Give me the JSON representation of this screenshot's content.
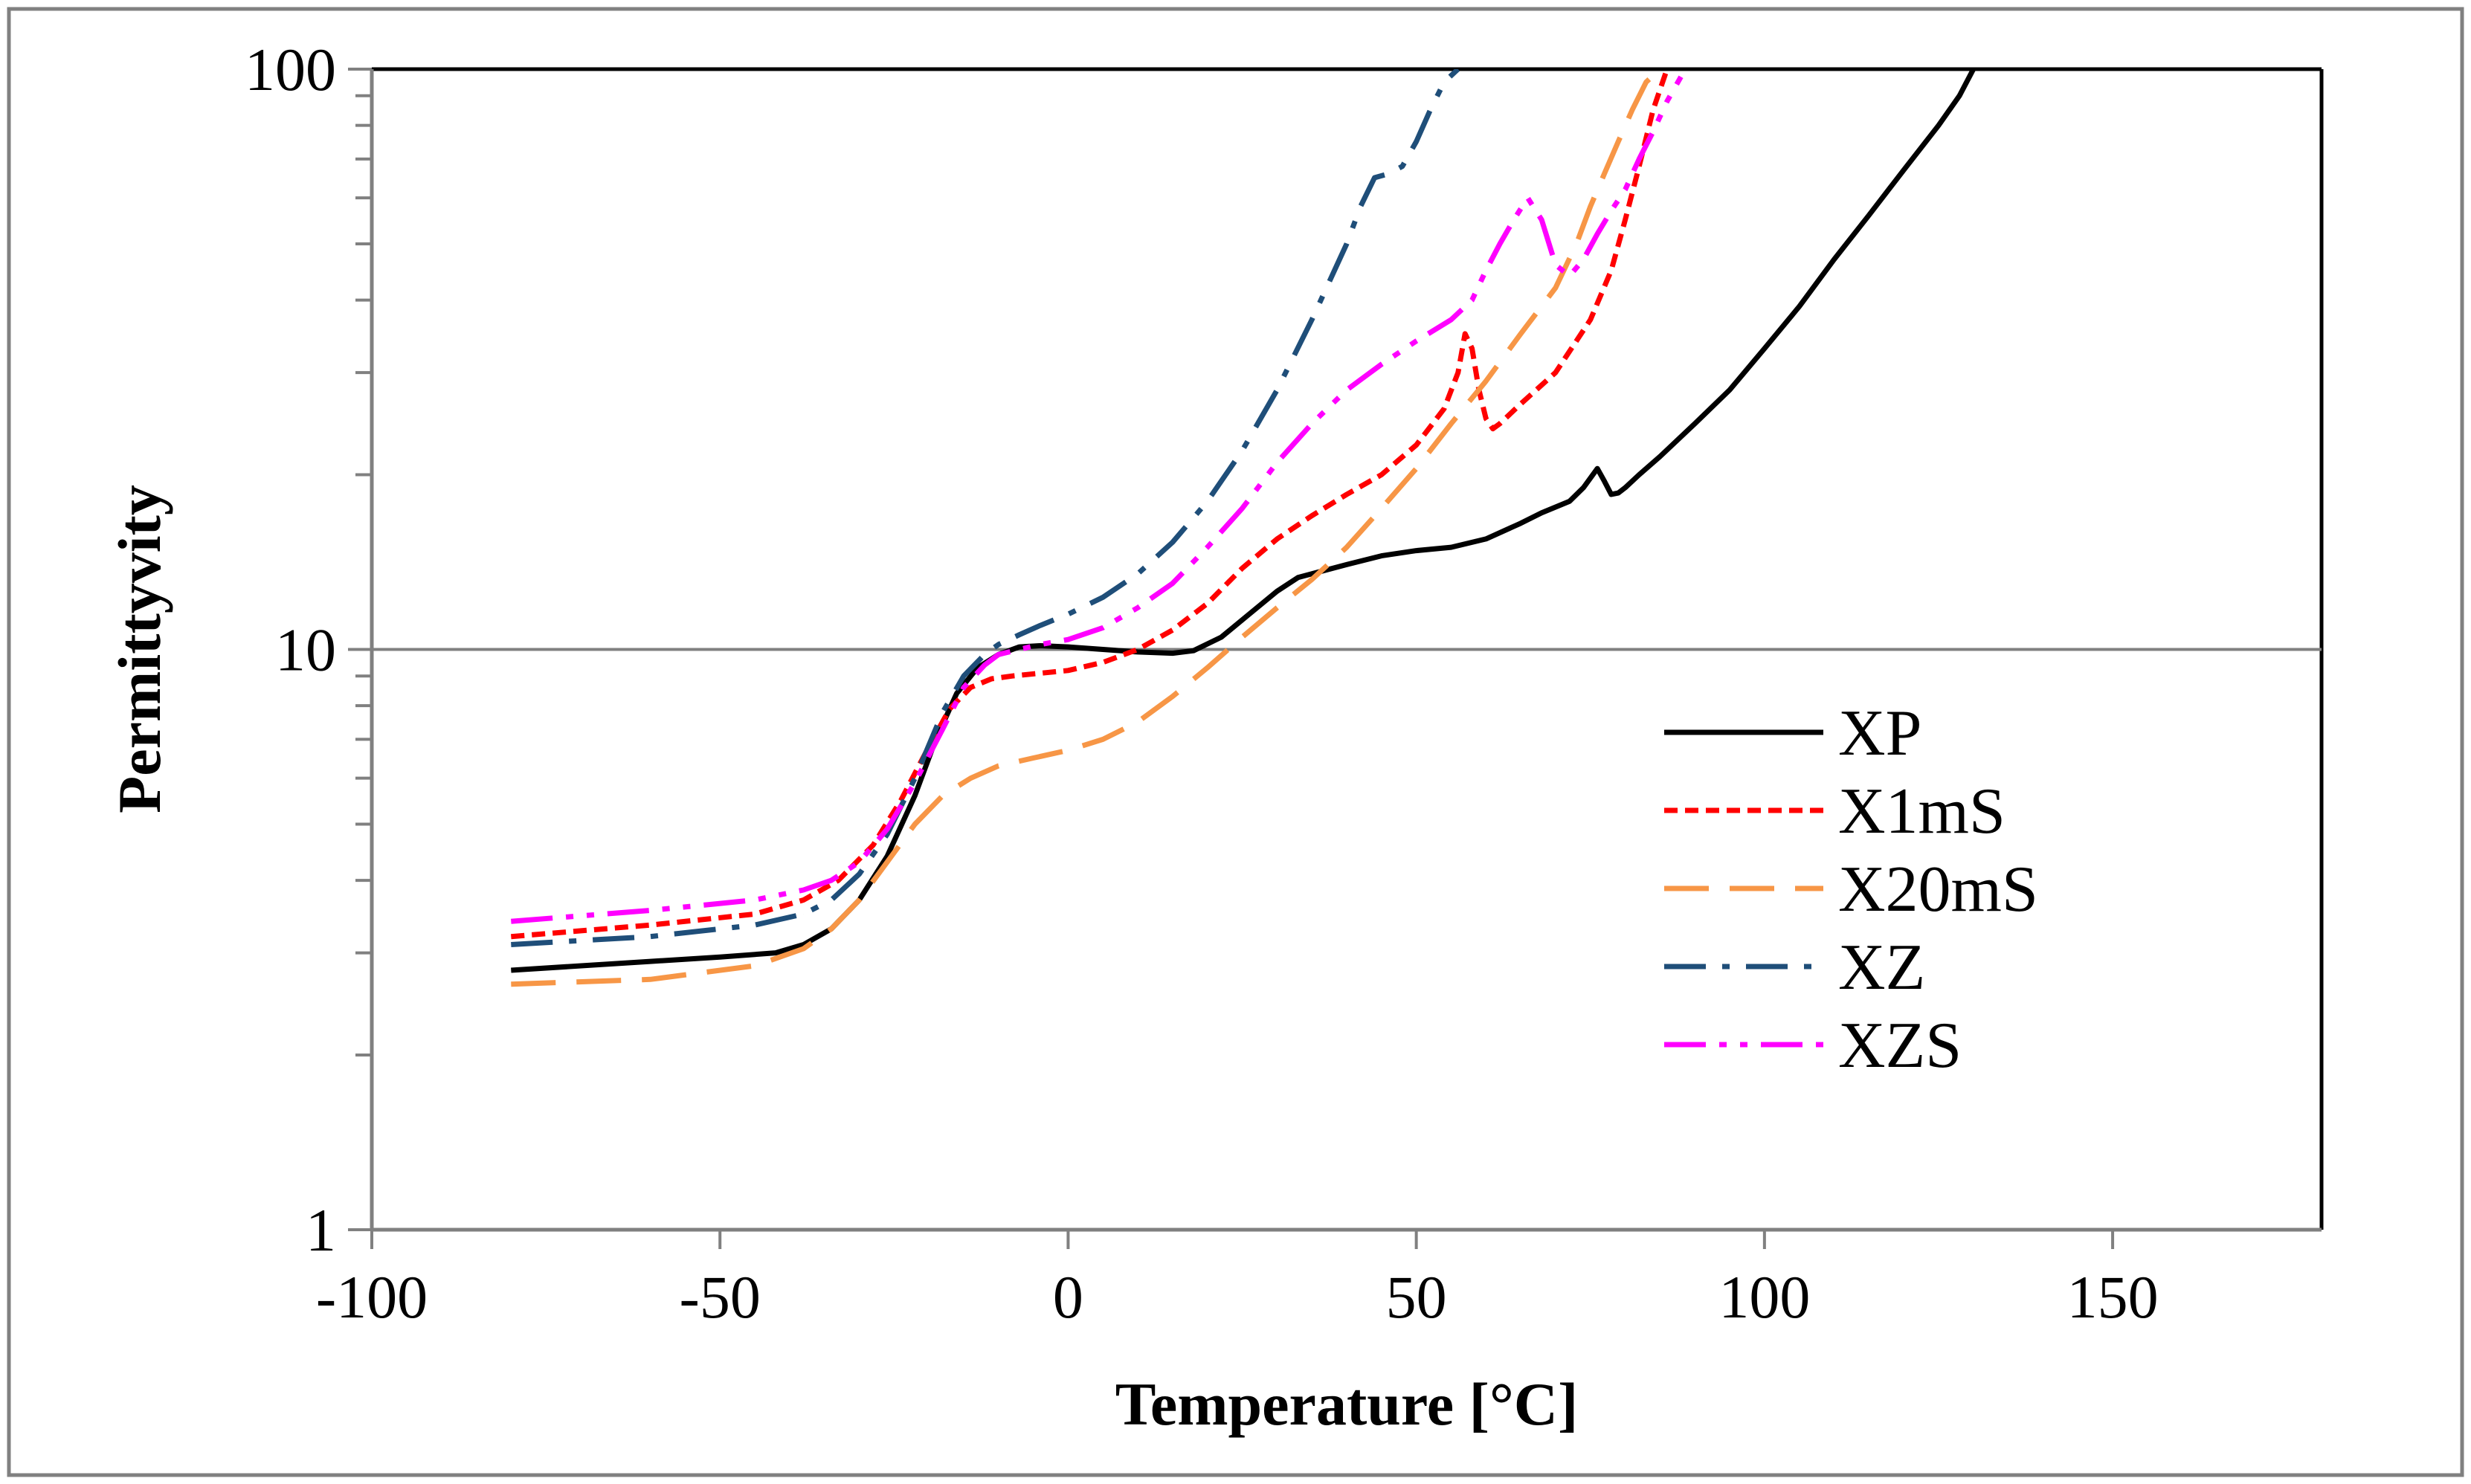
{
  "chart_data": {
    "type": "line",
    "title": "",
    "xlabel": "Temperature [°C]",
    "ylabel": "Permittyvity",
    "xlim": [
      -100,
      180
    ],
    "ylim": [
      1,
      100
    ],
    "yscale": "log",
    "x_ticks": [
      -100,
      -50,
      0,
      50,
      100,
      150
    ],
    "x_tick_labels": [
      "-100",
      "-50",
      "0",
      "50",
      "100",
      "150"
    ],
    "y_ticks": [
      1,
      10,
      100
    ],
    "y_tick_labels": [
      "1",
      "10",
      "100"
    ],
    "y_gridlines": [
      10
    ],
    "legend_position": "right-middle",
    "series": [
      {
        "name": "XP",
        "color": "#000000",
        "dash": "solid",
        "x": [
          -80,
          -60,
          -50,
          -42,
          -38,
          -34,
          -30,
          -26,
          -22,
          -19,
          -16,
          -13,
          -10,
          -7,
          -4,
          0,
          5,
          10,
          15,
          18,
          22,
          26,
          30,
          33,
          36,
          40,
          45,
          50,
          55,
          60,
          65,
          68,
          72,
          74,
          76,
          77,
          78,
          79,
          80,
          82,
          85,
          90,
          95,
          100,
          105,
          110,
          115,
          120,
          125,
          128,
          130
        ],
        "values": [
          2.8,
          2.9,
          2.95,
          3.0,
          3.1,
          3.3,
          3.7,
          4.4,
          5.6,
          7.0,
          8.4,
          9.3,
          9.8,
          10.1,
          10.15,
          10.1,
          10.0,
          9.9,
          9.85,
          9.95,
          10.5,
          11.5,
          12.6,
          13.3,
          13.6,
          14.0,
          14.5,
          14.8,
          15.0,
          15.5,
          16.5,
          17.2,
          18.0,
          19.0,
          20.5,
          19.5,
          18.5,
          18.6,
          19.0,
          20.0,
          21.5,
          24.5,
          28.0,
          33.0,
          39.0,
          47.0,
          56.0,
          67.0,
          80.0,
          90.0,
          100.0
        ]
      },
      {
        "name": "X1mS",
        "color": "#ff0000",
        "dash": "short-dash",
        "x": [
          -80,
          -60,
          -45,
          -38,
          -33,
          -28,
          -24,
          -20,
          -17,
          -14,
          -11,
          -8,
          -4,
          0,
          5,
          10,
          15,
          20,
          25,
          30,
          35,
          40,
          45,
          50,
          54,
          56,
          57,
          58,
          59,
          60,
          61,
          62,
          65,
          70,
          75,
          78,
          80,
          82,
          84,
          86
        ],
        "values": [
          3.2,
          3.35,
          3.5,
          3.7,
          4.0,
          4.6,
          5.5,
          6.8,
          7.9,
          8.6,
          8.9,
          9.0,
          9.1,
          9.2,
          9.5,
          10.0,
          10.8,
          12.0,
          13.8,
          15.5,
          17.0,
          18.5,
          20.0,
          22.5,
          26.0,
          30.0,
          35.0,
          33.0,
          28.0,
          25.0,
          24.0,
          24.5,
          26.5,
          30.0,
          37.0,
          45.0,
          55.0,
          68.0,
          85.0,
          100.0
        ]
      },
      {
        "name": "X20mS",
        "color": "#f79646",
        "dash": "long-dash",
        "x": [
          -80,
          -60,
          -45,
          -38,
          -34,
          -30,
          -26,
          -22,
          -18,
          -14,
          -10,
          -5,
          0,
          5,
          10,
          15,
          20,
          25,
          30,
          35,
          40,
          45,
          50,
          55,
          60,
          65,
          70,
          73,
          75,
          77,
          79,
          81,
          83,
          85
        ],
        "values": [
          2.65,
          2.7,
          2.85,
          3.05,
          3.3,
          3.7,
          4.3,
          5.0,
          5.6,
          6.0,
          6.3,
          6.5,
          6.7,
          7.0,
          7.5,
          8.3,
          9.3,
          10.5,
          11.8,
          13.2,
          15.0,
          17.5,
          20.5,
          24.5,
          29.0,
          35.0,
          42.0,
          50.0,
          58.0,
          66.0,
          75.0,
          85.0,
          95.0,
          100.0
        ]
      },
      {
        "name": "XZ",
        "color": "#1f4e79",
        "dash": "dash-dot",
        "x": [
          -80,
          -60,
          -45,
          -38,
          -34,
          -30,
          -26,
          -22,
          -18,
          -15,
          -12,
          -10,
          -7,
          -4,
          0,
          5,
          10,
          15,
          20,
          25,
          30,
          35,
          40,
          42,
          44,
          46,
          48,
          50,
          52,
          54,
          56
        ],
        "values": [
          3.1,
          3.2,
          3.35,
          3.5,
          3.7,
          4.1,
          4.8,
          6.0,
          7.8,
          9.0,
          9.8,
          10.2,
          10.6,
          11.0,
          11.5,
          12.3,
          13.5,
          15.3,
          18.0,
          22.0,
          28.0,
          37.0,
          50.0,
          58.0,
          65.0,
          66.0,
          68.0,
          75.0,
          85.0,
          95.0,
          100.0
        ]
      },
      {
        "name": "XZS",
        "color": "#ff00ff",
        "dash": "dash-dot-dot",
        "x": [
          -80,
          -60,
          -45,
          -38,
          -34,
          -30,
          -26,
          -22,
          -18,
          -15,
          -12,
          -10,
          -7,
          -4,
          0,
          5,
          10,
          15,
          20,
          25,
          30,
          35,
          40,
          45,
          50,
          55,
          58,
          60,
          62,
          64,
          66,
          68,
          70,
          72,
          74,
          76,
          78,
          80,
          82,
          84,
          86,
          88
        ],
        "values": [
          3.4,
          3.55,
          3.7,
          3.85,
          4.0,
          4.3,
          4.9,
          5.9,
          7.3,
          8.6,
          9.4,
          9.8,
          10.0,
          10.2,
          10.4,
          10.9,
          11.8,
          13.0,
          15.0,
          17.5,
          21.0,
          24.5,
          28.0,
          31.0,
          34.0,
          37.0,
          40.0,
          45.0,
          50.0,
          55.0,
          60.0,
          55.0,
          46.0,
          44.0,
          47.0,
          52.0,
          57.0,
          62.0,
          70.0,
          78.0,
          88.0,
          97.0
        ]
      }
    ]
  },
  "colors": {
    "frame": "#808080",
    "axis": "#808080",
    "grid": "#808080",
    "background": "#ffffff"
  }
}
